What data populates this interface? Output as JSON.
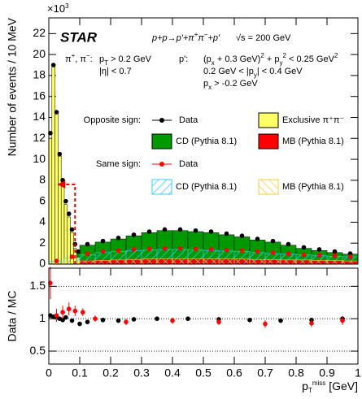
{
  "chart_data": [
    {
      "type": "histogram",
      "y_label": "Number of events / 10 MeV",
      "y_multiplier": [
        {
          "text": "×10"
        },
        {
          "text": "3",
          "sup": true
        }
      ],
      "logo": "STAR",
      "annotations": [
        [
          {
            "text": "π"
          },
          {
            "text": "+",
            "sup": true
          },
          {
            "text": ", π"
          },
          {
            "text": "−",
            "sup": true
          },
          {
            "text": ":"
          }
        ],
        [
          {
            "text": "p"
          },
          {
            "text": "T",
            "sub": true
          },
          {
            "text": " > 0.2 GeV"
          }
        ],
        [
          {
            "text": "|η| < 0.7"
          }
        ],
        [
          {
            "text": "p':"
          }
        ],
        [
          {
            "text": "(p"
          },
          {
            "text": "x",
            "sub": true
          },
          {
            "text": " + 0.3 GeV)"
          },
          {
            "text": "2",
            "sup": true
          },
          {
            "text": " + p"
          },
          {
            "text": "y",
            "sub": true
          },
          {
            "text": "2",
            "sup": true
          },
          {
            "text": " < 0.25 GeV"
          },
          {
            "text": "2",
            "sup": true
          }
        ],
        [
          {
            "text": "0.2 GeV < |p"
          },
          {
            "text": "y",
            "sub": true
          },
          {
            "text": "| < 0.4 GeV"
          }
        ],
        [
          {
            "text": "p"
          },
          {
            "text": "x",
            "sub": true
          },
          {
            "text": " > -0.2 GeV"
          }
        ],
        [
          {
            "text": "p+p→p'+π"
          },
          {
            "text": "+",
            "sup": true
          },
          {
            "text": "π"
          },
          {
            "text": "−",
            "sup": true
          },
          {
            "text": "+p'"
          }
        ],
        [
          {
            "text": "√s = 200 GeV"
          }
        ]
      ],
      "legend_groups": [
        "Opposite sign:",
        "Same sign:"
      ],
      "xlim": [
        0,
        1
      ],
      "ylim": [
        0,
        23.5
      ],
      "xticks": [
        0,
        0.1,
        0.2,
        0.3,
        0.4,
        0.5,
        0.6,
        0.7,
        0.8,
        0.9,
        1
      ],
      "yticks": [
        0,
        2,
        4,
        6,
        8,
        10,
        12,
        14,
        16,
        18,
        20,
        22
      ],
      "cut": {
        "x": 0.085,
        "y": 7.6
      },
      "series": [
        {
          "name": "Data",
          "kind": "points",
          "color": "#000000",
          "x": [
            0.005,
            0.015,
            0.025,
            0.035,
            0.045,
            0.055,
            0.065,
            0.075,
            0.085,
            0.095,
            0.125,
            0.175,
            0.225,
            0.275,
            0.325,
            0.375,
            0.425,
            0.475,
            0.525,
            0.575,
            0.625,
            0.675,
            0.725,
            0.775,
            0.825,
            0.875,
            0.925,
            0.975
          ],
          "values": [
            12.5,
            19,
            14.5,
            10.5,
            8,
            6,
            4.8,
            3.3,
            1.9,
            1.2,
            1.9,
            2.2,
            2.5,
            2.8,
            3.1,
            3.3,
            3.3,
            3.2,
            3.1,
            2.9,
            2.7,
            2.4,
            2.2,
            1.9,
            1.6,
            1.4,
            1.2,
            1.0
          ]
        },
        {
          "name": "Exclusive π⁺π⁻",
          "kind": "filled",
          "color": "#ffff66",
          "bins": [
            0,
            0.01,
            0.02,
            0.03,
            0.04,
            0.05,
            0.06,
            0.07,
            0.08,
            0.09,
            0.1
          ],
          "values": [
            12,
            18.9,
            14.5,
            10.3,
            7.6,
            5.7,
            4.5,
            3.0,
            1.5,
            0.6
          ]
        },
        {
          "name": "CD (Pythia 8.1)",
          "kind": "filled",
          "color": "#009900",
          "bins": [
            0,
            0.05,
            0.1,
            0.15,
            0.2,
            0.25,
            0.3,
            0.35,
            0.4,
            0.45,
            0.5,
            0.55,
            0.6,
            0.65,
            0.7,
            0.75,
            0.8,
            0.85,
            0.9,
            0.95,
            1
          ],
          "values": [
            0.5,
            1.3,
            1.8,
            2.1,
            2.4,
            2.7,
            3.0,
            3.2,
            3.2,
            3.1,
            3.0,
            2.8,
            2.6,
            2.3,
            2.1,
            1.8,
            1.5,
            1.3,
            1.1,
            0.95
          ]
        },
        {
          "name": "MB (Pythia 8.1)",
          "kind": "filled",
          "color": "#ff0000",
          "bins": [
            0,
            0.05,
            0.1,
            0.15,
            0.2,
            0.25,
            0.3,
            0.35,
            0.4,
            0.45,
            0.5,
            0.55,
            0.6,
            0.65,
            0.7,
            0.75,
            0.8,
            0.85,
            0.9,
            0.95,
            1
          ],
          "values": [
            0.15,
            0.3,
            0.35,
            0.4,
            0.45,
            0.5,
            0.5,
            0.5,
            0.5,
            0.5,
            0.5,
            0.5,
            0.45,
            0.45,
            0.4,
            0.4,
            0.35,
            0.35,
            0.3,
            0.3
          ]
        },
        {
          "name": "Data",
          "kind": "points",
          "color": "#ff0000",
          "x": [
            0.025,
            0.075,
            0.125,
            0.175,
            0.225,
            0.275,
            0.325,
            0.375,
            0.425,
            0.475,
            0.525,
            0.575,
            0.625,
            0.675,
            0.725,
            0.775,
            0.825,
            0.875,
            0.925,
            0.975
          ],
          "values": [
            0.3,
            0.7,
            1.0,
            1.2,
            1.3,
            1.4,
            1.45,
            1.5,
            1.5,
            1.45,
            1.4,
            1.35,
            1.3,
            1.2,
            1.1,
            1.0,
            0.9,
            0.85,
            0.8,
            0.7
          ]
        },
        {
          "name": "CD (Pythia 8.1)",
          "kind": "hatched",
          "color": "#33ccff",
          "bins": [
            0,
            0.05,
            0.1,
            0.15,
            0.2,
            0.25,
            0.3,
            0.35,
            0.4,
            0.45,
            0.5,
            0.55,
            0.6,
            0.65,
            0.7,
            0.75,
            0.8,
            0.85,
            0.9,
            0.95,
            1
          ],
          "values": [
            0.3,
            0.6,
            0.9,
            1.1,
            1.2,
            1.3,
            1.35,
            1.4,
            1.4,
            1.35,
            1.3,
            1.25,
            1.2,
            1.1,
            1.0,
            0.95,
            0.9,
            0.8,
            0.75,
            0.7
          ]
        },
        {
          "name": "MB (Pythia 8.1)",
          "kind": "hatched",
          "color": "#ffcc33",
          "bins": [
            0,
            0.05,
            0.1,
            0.15,
            0.2,
            0.25,
            0.3,
            0.35,
            0.4,
            0.45,
            0.5,
            0.55,
            0.6,
            0.65,
            0.7,
            0.75,
            0.8,
            0.85,
            0.9,
            0.95,
            1
          ],
          "values": [
            0.1,
            0.2,
            0.3,
            0.35,
            0.4,
            0.45,
            0.5,
            0.5,
            0.5,
            0.5,
            0.5,
            0.5,
            0.5,
            0.45,
            0.45,
            0.4,
            0.4,
            0.35,
            0.35,
            0.3
          ]
        }
      ]
    },
    {
      "type": "scatter",
      "y_label": "Data / MC",
      "x_label": [
        {
          "text": "p"
        },
        {
          "text": "T",
          "sub": true
        },
        {
          "text": "miss",
          "sup": true
        },
        {
          "text": " [GeV]"
        }
      ],
      "xlim": [
        0,
        1
      ],
      "ylim": [
        0.3,
        1.78
      ],
      "xticks": [
        0,
        0.1,
        0.2,
        0.3,
        0.4,
        0.5,
        0.6,
        0.7,
        0.8,
        0.9,
        1
      ],
      "yticks": [
        0.5,
        1,
        1.5
      ],
      "grid": true,
      "series": [
        {
          "color": "#000000",
          "x": [
            0.005,
            0.015,
            0.025,
            0.035,
            0.045,
            0.055,
            0.075,
            0.1,
            0.125,
            0.175,
            0.225,
            0.275,
            0.35,
            0.45,
            0.55,
            0.65,
            0.75,
            0.85,
            0.95
          ],
          "values": [
            1.05,
            1.03,
            1.02,
            1.0,
            0.98,
            1.02,
            0.97,
            0.92,
            0.95,
            0.98,
            0.97,
            0.99,
            1.0,
            1.0,
            0.99,
            0.98,
            0.97,
            0.98,
            1.0
          ],
          "errors": [
            0.03,
            0.02,
            0.02,
            0.02,
            0.02,
            0.03,
            0.03,
            0.03,
            0.03,
            0.02,
            0.02,
            0.02,
            0.02,
            0.02,
            0.02,
            0.02,
            0.02,
            0.02,
            0.03
          ]
        },
        {
          "color": "#ff0000",
          "x": [
            0.005,
            0.025,
            0.045,
            0.065,
            0.085,
            0.11,
            0.15,
            0.25,
            0.4,
            0.55,
            0.7,
            0.85,
            0.95
          ],
          "values": [
            1.55,
            1.05,
            1.1,
            1.15,
            1.12,
            1.1,
            1.0,
            0.95,
            0.97,
            0.95,
            0.92,
            0.93,
            0.97
          ],
          "errors": [
            0.25,
            0.1,
            0.1,
            0.1,
            0.08,
            0.06,
            0.05,
            0.05,
            0.05,
            0.05,
            0.06,
            0.06,
            0.07
          ]
        }
      ]
    }
  ]
}
